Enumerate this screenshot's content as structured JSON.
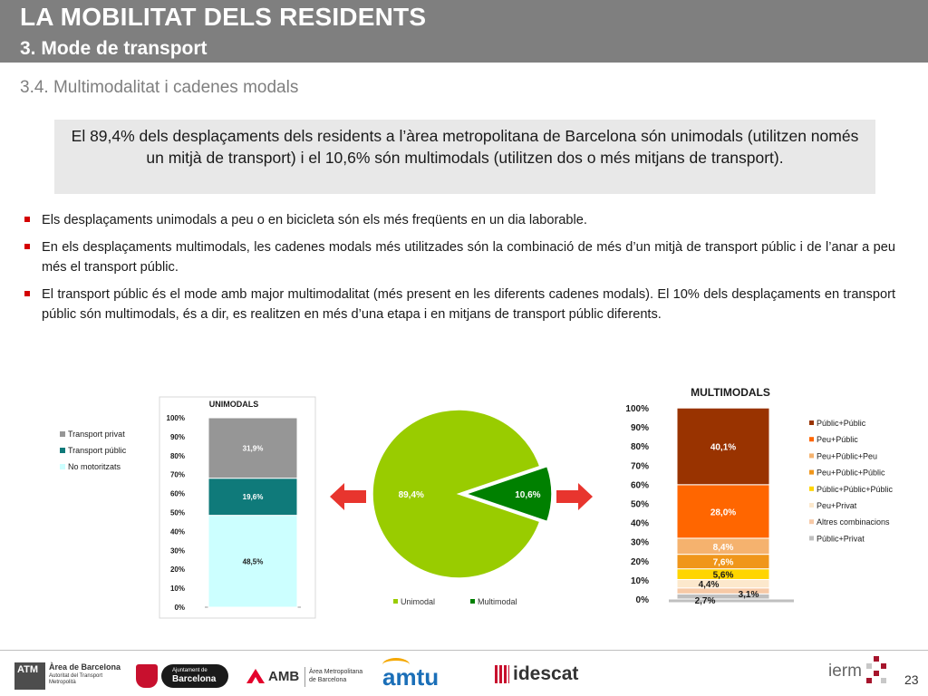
{
  "header": {
    "title": "LA MOBILITAT DELS RESIDENTS",
    "subtitle": "3. Mode de transport"
  },
  "section_title": "3.4. Multimodalitat i cadenes modals",
  "summary": "El 89,4% dels desplaçaments dels residents a l’àrea metropolitana de Barcelona són unimodals (utilitzen només un mitjà de transport) i el 10,6% són multimodals (utilitzen dos o més mitjans de transport).",
  "bullets": [
    "Els desplaçaments unimodals a peu o en bicicleta són els més freqüents en un dia laborable.",
    "En els desplaçaments multimodals, les cadenes modals més utilitzades són la combinació de més d’un mitjà de transport públic i de l’anar a peu més el transport públic.",
    "El transport públic és el mode amb major multimodalitat (més present en les diferents cadenes modals). El 10% dels desplaçaments en transport públic són multimodals, és a dir, es realitzen en més d’una etapa i en mitjans de transport públic diferents."
  ],
  "colors": {
    "header_bg": "#7f7f7f",
    "bullet": "#d40000",
    "arrow": "#e8352e"
  },
  "chart_data": [
    {
      "type": "bar",
      "stacked": true,
      "title": "UNIMODALS",
      "categories": [
        ""
      ],
      "ylim": [
        0,
        100
      ],
      "ytick_labels": [
        "0%",
        "10%",
        "20%",
        "30%",
        "40%",
        "50%",
        "60%",
        "70%",
        "80%",
        "90%",
        "100%"
      ],
      "legend_position": "left",
      "series": [
        {
          "name": "No motoritzats",
          "values": [
            48.5
          ],
          "label": "48,5%",
          "color": "#ccffff"
        },
        {
          "name": "Transport públic",
          "values": [
            19.6
          ],
          "label": "19,6%",
          "color": "#0f7a7a"
        },
        {
          "name": "Transport privat",
          "values": [
            31.9
          ],
          "label": "31,9%",
          "color": "#969696"
        }
      ]
    },
    {
      "type": "pie",
      "legend_position": "bottom",
      "slices": [
        {
          "name": "Unimodal",
          "value": 89.4,
          "label": "89,4%",
          "color": "#99cc00"
        },
        {
          "name": "Multimodal",
          "value": 10.6,
          "label": "10,6%",
          "color": "#008000"
        }
      ]
    },
    {
      "type": "bar",
      "stacked": true,
      "title": "MULTIMODALS",
      "categories": [
        ""
      ],
      "ylim": [
        0,
        100
      ],
      "ytick_labels": [
        "0%",
        "10%",
        "20%",
        "30%",
        "40%",
        "50%",
        "60%",
        "70%",
        "80%",
        "90%",
        "100%"
      ],
      "legend_position": "right",
      "series": [
        {
          "name": "Públic+Privat",
          "values": [
            2.7
          ],
          "label": "2,7%",
          "color": "#bfbfbf"
        },
        {
          "name": "Altres combinacions",
          "values": [
            3.1
          ],
          "label": "3,1%",
          "color": "#f7c9a6"
        },
        {
          "name": "Peu+Privat",
          "values": [
            4.4
          ],
          "label": "4,4%",
          "color": "#fce8cc"
        },
        {
          "name": "Públic+Públic+Públic",
          "values": [
            5.6
          ],
          "label": "5,6%",
          "color": "#ffd500"
        },
        {
          "name": "Peu+Públic+Públic",
          "values": [
            7.6
          ],
          "label": "7,6%",
          "color": "#f0961a"
        },
        {
          "name": "Peu+Públic+Peu",
          "values": [
            8.4
          ],
          "label": "8,4%",
          "color": "#f5b26e"
        },
        {
          "name": "Peu+Públic",
          "values": [
            28.0
          ],
          "label": "28,0%",
          "color": "#ff6600"
        },
        {
          "name": "Públic+Públic",
          "values": [
            40.1
          ],
          "label": "40,1%",
          "color": "#993300"
        }
      ]
    }
  ],
  "footer": {
    "logos": {
      "atm": "ATM",
      "atm_line1": "Àrea de Barcelona",
      "atm_line2": "Autoritat del Transport",
      "atm_line3": "Metropolità",
      "ajuntament_line1": "Ajuntament de",
      "ajuntament_line2": "Barcelona",
      "amb": "AMB",
      "amb_line1": "Àrea Metropolitana",
      "amb_line2": "de Barcelona",
      "amtu": "amtu",
      "idescat": "idescat",
      "ierm": "ierm"
    },
    "page_number": "23"
  }
}
